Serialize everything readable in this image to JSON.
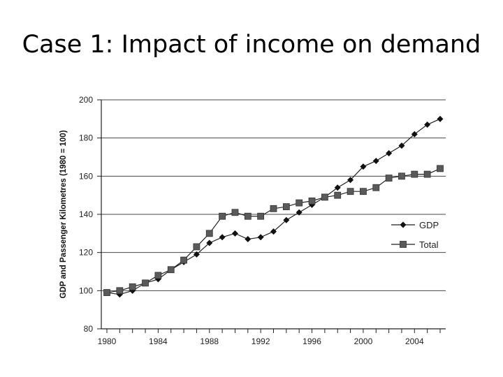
{
  "slide": {
    "title": "Case 1: Impact of income on demand"
  },
  "chart_data": {
    "type": "line",
    "title": "",
    "xlabel": "",
    "ylabel": "GDP and Passenger Kilometres (1980 = 100)",
    "xlim": [
      1980,
      2006
    ],
    "ylim": [
      80,
      200
    ],
    "x_ticks": [
      1980,
      1984,
      1988,
      1992,
      1996,
      2000,
      2004
    ],
    "y_ticks": [
      80,
      100,
      120,
      140,
      160,
      180,
      200
    ],
    "grid": "horizontal",
    "legend_position": "right-middle",
    "x": [
      1980,
      1981,
      1982,
      1983,
      1984,
      1985,
      1986,
      1987,
      1988,
      1989,
      1990,
      1991,
      1992,
      1993,
      1994,
      1995,
      1996,
      1997,
      1998,
      1999,
      2000,
      2001,
      2002,
      2003,
      2004,
      2005,
      2006
    ],
    "series": [
      {
        "name": "GDP",
        "marker": "diamond",
        "color": "#111111",
        "values": [
          99,
          98,
          100,
          104,
          106,
          111,
          115,
          119,
          125,
          128,
          130,
          127,
          128,
          131,
          137,
          141,
          145,
          149,
          154,
          158,
          165,
          168,
          172,
          176,
          182,
          187,
          190
        ]
      },
      {
        "name": "Total",
        "marker": "square",
        "color": "#5a5a5a",
        "values": [
          99,
          100,
          102,
          104,
          108,
          111,
          116,
          123,
          130,
          139,
          141,
          139,
          139,
          143,
          144,
          146,
          147,
          149,
          150,
          152,
          152,
          154,
          159,
          160,
          161,
          161,
          164
        ]
      }
    ]
  }
}
